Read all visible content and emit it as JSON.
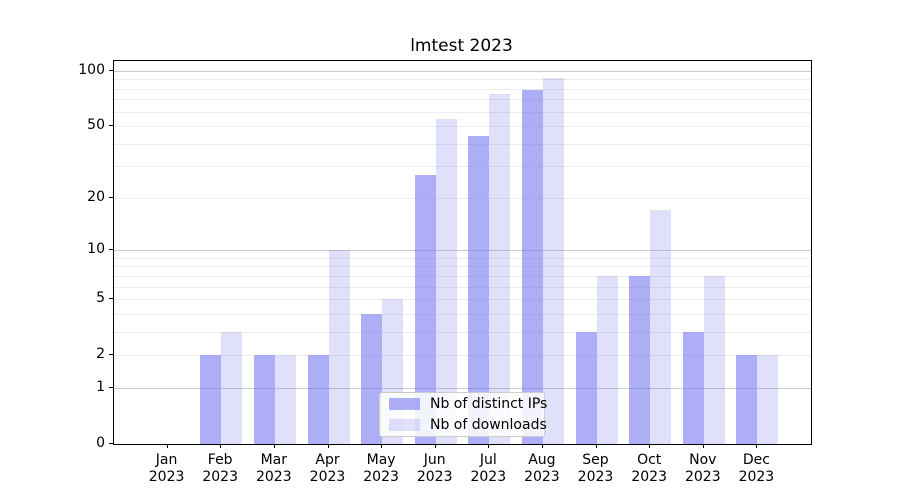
{
  "title": "lmtest 2023",
  "chart_data": {
    "type": "bar",
    "title": "lmtest 2023",
    "categories": [
      "Jan",
      "Feb",
      "Mar",
      "Apr",
      "May",
      "Jun",
      "Jul",
      "Aug",
      "Sep",
      "Oct",
      "Nov",
      "Dec"
    ],
    "x_year_label": "2023",
    "series": [
      {
        "name": "Nb of distinct IPs",
        "color": "#7d7df0",
        "alpha": 0.62,
        "values": [
          0,
          2,
          2,
          2,
          4,
          27,
          44,
          79,
          3,
          7,
          3,
          2
        ]
      },
      {
        "name": "Nb of downloads",
        "color": "#7d7df0",
        "alpha": 0.24,
        "values": [
          0,
          3,
          2,
          10,
          5,
          55,
          75,
          92,
          7,
          17,
          7,
          2
        ]
      }
    ],
    "yscale": "log1p",
    "ylim": [
      0,
      113
    ],
    "yticks": [
      0,
      1,
      2,
      5,
      10,
      20,
      50,
      100
    ],
    "yticklabels": [
      "0",
      "1",
      "2",
      "5",
      "10",
      "20",
      "50",
      "100"
    ],
    "major_gridlines": [
      1,
      10,
      100
    ],
    "minor_gridlines": [
      2,
      3,
      4,
      5,
      6,
      7,
      8,
      9,
      20,
      30,
      40,
      50,
      60,
      70,
      80,
      90
    ],
    "grid": "horizontal",
    "legend_position": "lower center",
    "colors": {
      "bar_base": "#7d7df0",
      "grid_minor": "#ececec",
      "grid_major": "#c9c9c9",
      "spine": "#000000",
      "legend_border": "#cccccc"
    }
  },
  "legend": {
    "items": [
      {
        "label": "Nb of distinct IPs"
      },
      {
        "label": "Nb of downloads"
      }
    ]
  }
}
